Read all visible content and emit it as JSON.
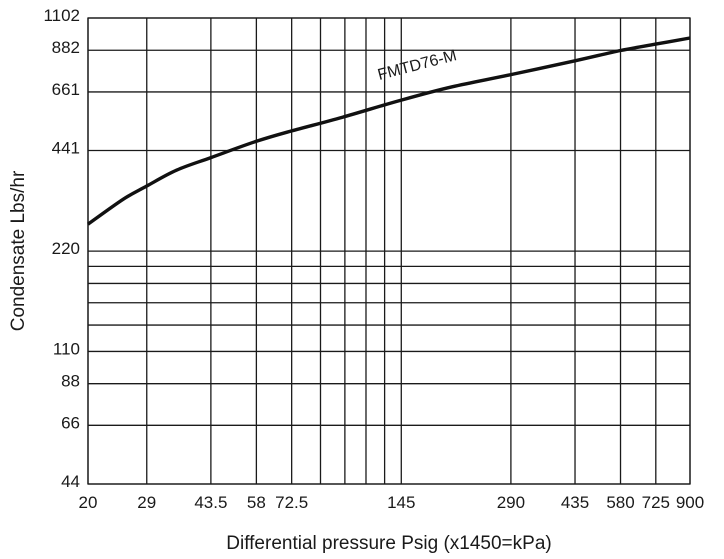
{
  "chart_data": {
    "type": "line",
    "xscale": "log",
    "yscale": "log",
    "xlim": [
      20,
      900
    ],
    "ylim": [
      44,
      1102
    ],
    "xlabel": "Differential pressure Psig (x1450=kPa)",
    "ylabel": "Condensate Lbs/hr",
    "grid": true,
    "x_ticks": [
      {
        "value": 20,
        "label": "20"
      },
      {
        "value": 29,
        "label": "29"
      },
      {
        "value": 43.5,
        "label": "43.5"
      },
      {
        "value": 58,
        "label": "58"
      },
      {
        "value": 72.5,
        "label": "72.5"
      },
      {
        "value": 145,
        "label": "145"
      },
      {
        "value": 290,
        "label": "290"
      },
      {
        "value": 435,
        "label": "435"
      },
      {
        "value": 580,
        "label": "580"
      },
      {
        "value": 725,
        "label": "725"
      },
      {
        "value": 900,
        "label": "900"
      }
    ],
    "x_minor_grid": [
      87,
      101.5,
      116,
      130.5
    ],
    "y_ticks": [
      {
        "value": 44,
        "label": "44"
      },
      {
        "value": 66,
        "label": "66"
      },
      {
        "value": 88,
        "label": "88"
      },
      {
        "value": 110,
        "label": "110"
      },
      {
        "value": 220,
        "label": "220"
      },
      {
        "value": 441,
        "label": "441"
      },
      {
        "value": 661,
        "label": "661"
      },
      {
        "value": 882,
        "label": "882"
      },
      {
        "value": 1102,
        "label": "1102"
      }
    ],
    "y_minor_grid": [
      132,
      154,
      176,
      198
    ],
    "series": [
      {
        "name": "FMTD76-M",
        "x": [
          20,
          25,
          29,
          35,
          43.5,
          58,
          72.5,
          100,
          145,
          200,
          290,
          435,
          580,
          725,
          900
        ],
        "y": [
          265,
          315,
          345,
          385,
          420,
          470,
          505,
          555,
          625,
          685,
          745,
          820,
          880,
          920,
          960
        ]
      }
    ]
  }
}
